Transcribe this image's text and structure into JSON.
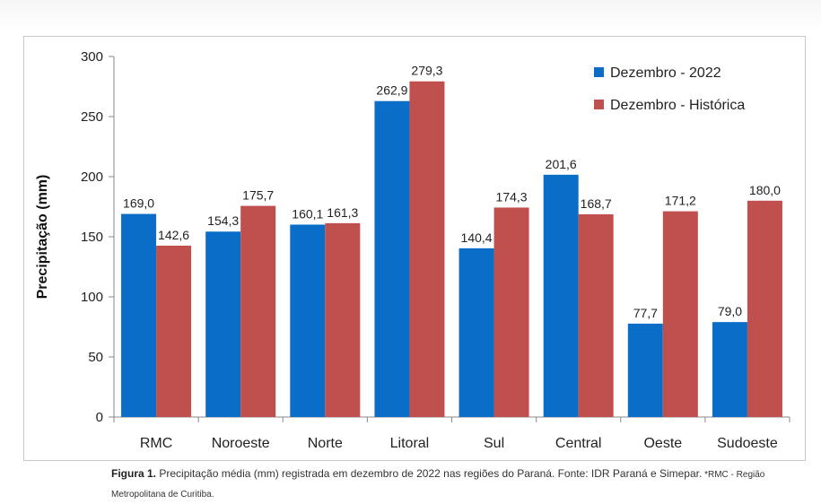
{
  "chart_data": {
    "type": "bar",
    "title": "",
    "xlabel": "",
    "ylabel": "Precipitação (mm)",
    "ylim": [
      0,
      300
    ],
    "yticks": [
      0,
      50,
      100,
      150,
      200,
      250,
      300
    ],
    "categories": [
      "RMC",
      "Noroeste",
      "Norte",
      "Litoral",
      "Sul",
      "Central",
      "Oeste",
      "Sudoeste"
    ],
    "series": [
      {
        "name": "Dezembro - 2022",
        "color": "#0a6ec8",
        "values": [
          169.0,
          154.3,
          160.1,
          262.9,
          140.4,
          201.6,
          77.7,
          79.0
        ],
        "labels": [
          "169,0",
          "154,3",
          "160,1",
          "262,9",
          "140,4",
          "201,6",
          "77,7",
          "79,0"
        ]
      },
      {
        "name": "Dezembro - Histórica",
        "color": "#c0504d",
        "values": [
          142.6,
          175.7,
          161.3,
          279.3,
          174.3,
          168.7,
          171.2,
          180.0
        ],
        "labels": [
          "142,6",
          "175,7",
          "161,3",
          "279,3",
          "174,3",
          "168,7",
          "171,2",
          "180,0"
        ]
      }
    ],
    "grid": false,
    "legend_position": "top-right"
  },
  "caption": {
    "figure_label": "Figura 1.",
    "text": " Precipitação média (mm) registrada em dezembro de 2022 nas regiões do Paraná. Fonte: IDR Paraná e Simepar.",
    "note": " *RMC - Região Metropolitana de Curitiba."
  }
}
